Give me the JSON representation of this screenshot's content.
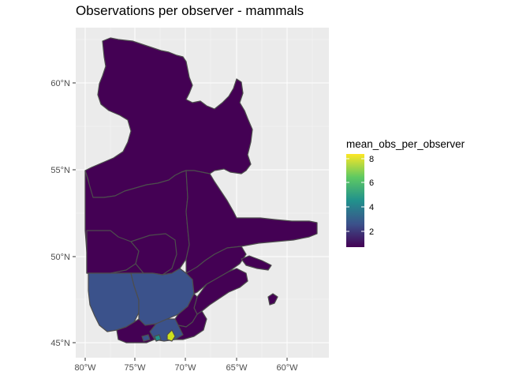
{
  "plot": {
    "title": "Observations per observer - mammals"
  },
  "axes": {
    "x_ticks": [
      "80°W",
      "75°W",
      "70°W",
      "65°W",
      "60°W"
    ],
    "y_ticks": [
      "60°N",
      "55°N",
      "50°N",
      "45°N"
    ]
  },
  "legend": {
    "title": "mean_obs_per_observer",
    "labels": [
      "8",
      "6",
      "4",
      "2"
    ],
    "scale": "viridis",
    "range": [
      1,
      8.5
    ]
  },
  "colors": {
    "panel_bg": "#ebebeb",
    "gridline": "#ffffff",
    "border": "#4d4d4d",
    "low": "#440154",
    "low_mid": "#3b528b",
    "mid": "#21918c",
    "mid_high": "#5ec962",
    "high": "#fde725"
  }
}
